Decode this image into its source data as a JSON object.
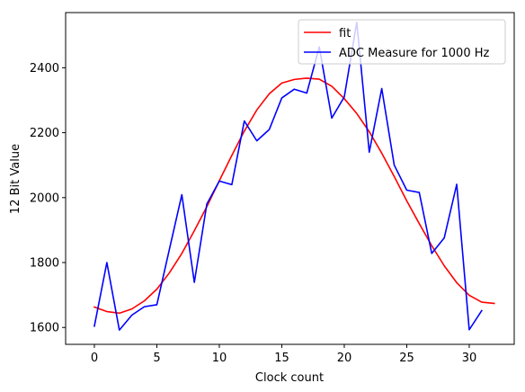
{
  "chart_data": {
    "type": "line",
    "xlabel": "Clock count",
    "ylabel": "12 Bit Value",
    "xlim": [
      -2.3,
      33.6
    ],
    "ylim": [
      1548,
      2570
    ],
    "xticks": [
      0,
      5,
      10,
      15,
      20,
      25,
      30
    ],
    "yticks": [
      1600,
      1800,
      2000,
      2200,
      2400
    ],
    "grid": false,
    "legend_position": "top-right",
    "series": [
      {
        "name": "fit",
        "color": "#ff0000",
        "x": [
          0,
          1,
          2,
          3,
          4,
          5,
          6,
          7,
          8,
          9,
          10,
          11,
          12,
          13,
          14,
          15,
          16,
          17,
          18,
          19,
          20,
          21,
          22,
          23,
          24,
          25,
          26,
          27,
          28,
          29,
          30,
          31,
          32
        ],
        "y": [
          1663,
          1649,
          1644,
          1657,
          1682,
          1718,
          1768,
          1828,
          1898,
          1972,
          2052,
          2130,
          2205,
          2270,
          2320,
          2353,
          2364,
          2368,
          2365,
          2343,
          2305,
          2259,
          2203,
          2137,
          2065,
          1990,
          1920,
          1852,
          1790,
          1738,
          1699,
          1678,
          1674
        ]
      },
      {
        "name": "ADC Measure for 1000 Hz",
        "color": "#0000ff",
        "x": [
          0,
          1,
          2,
          3,
          4,
          5,
          6,
          7,
          8,
          9,
          10,
          11,
          12,
          13,
          14,
          15,
          16,
          17,
          18,
          19,
          20,
          21,
          22,
          23,
          24,
          25,
          26,
          27,
          28,
          29,
          30,
          31
        ],
        "y": [
          1604,
          1800,
          1592,
          1638,
          1664,
          1670,
          1840,
          2009,
          1739,
          1980,
          2051,
          2040,
          2236,
          2175,
          2210,
          2307,
          2334,
          2322,
          2464,
          2245,
          2310,
          2540,
          2140,
          2336,
          2100,
          2023,
          2016,
          1828,
          1876,
          2041,
          1593,
          1652
        ]
      }
    ]
  }
}
